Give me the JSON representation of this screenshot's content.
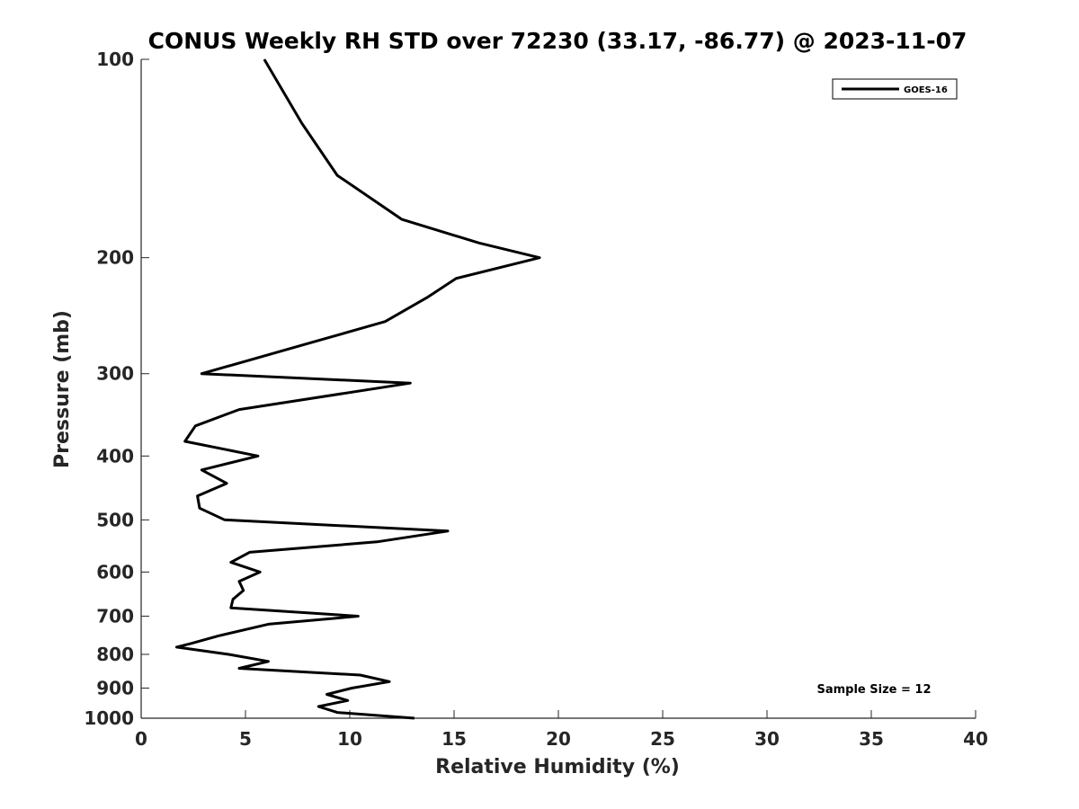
{
  "chart_data": {
    "type": "line",
    "title": "CONUS Weekly RH STD over 72230 (33.17, -86.77) @ 2023-11-07",
    "xlabel": "Relative Humidity (%)",
    "ylabel": "Pressure (mb)",
    "xlim": [
      0,
      40
    ],
    "ylim": [
      100,
      1000
    ],
    "yscale": "log",
    "y_reversed": true,
    "xticks": [
      0,
      5,
      10,
      15,
      20,
      25,
      30,
      35,
      40
    ],
    "xtick_labels": [
      "0",
      "5",
      "10",
      "15",
      "20",
      "25",
      "30",
      "35",
      "40"
    ],
    "yticks": [
      100,
      200,
      300,
      400,
      500,
      600,
      700,
      800,
      900,
      1000
    ],
    "ytick_labels": [
      "100",
      "200",
      "300",
      "400",
      "500",
      "600",
      "700",
      "800",
      "900",
      "1000"
    ],
    "grid": false,
    "legend": {
      "position": "top-right",
      "entries": [
        "GOES-16"
      ]
    },
    "annotation": "Sample Size = 12",
    "series": [
      {
        "name": "GOES-16",
        "color": "#000000",
        "points": [
          [
            5.9,
            100
          ],
          [
            7.7,
            125
          ],
          [
            9.4,
            150
          ],
          [
            12.5,
            175
          ],
          [
            16.2,
            190
          ],
          [
            19.1,
            200
          ],
          [
            15.1,
            215
          ],
          [
            13.7,
            230
          ],
          [
            11.7,
            250
          ],
          [
            2.9,
            300
          ],
          [
            12.9,
            310
          ],
          [
            4.7,
            340
          ],
          [
            2.6,
            360
          ],
          [
            2.1,
            380
          ],
          [
            5.6,
            400
          ],
          [
            2.9,
            420
          ],
          [
            4.1,
            440
          ],
          [
            2.7,
            460
          ],
          [
            2.8,
            480
          ],
          [
            4.0,
            500
          ],
          [
            14.7,
            520
          ],
          [
            11.3,
            540
          ],
          [
            5.2,
            560
          ],
          [
            4.3,
            580
          ],
          [
            5.7,
            600
          ],
          [
            4.7,
            620
          ],
          [
            4.9,
            640
          ],
          [
            4.4,
            660
          ],
          [
            4.3,
            680
          ],
          [
            10.4,
            700
          ],
          [
            6.1,
            720
          ],
          [
            3.7,
            750
          ],
          [
            2.4,
            770
          ],
          [
            1.7,
            780
          ],
          [
            4.2,
            800
          ],
          [
            6.1,
            820
          ],
          [
            4.7,
            840
          ],
          [
            10.5,
            860
          ],
          [
            11.9,
            880
          ],
          [
            10.1,
            900
          ],
          [
            8.9,
            920
          ],
          [
            9.9,
            940
          ],
          [
            8.5,
            960
          ],
          [
            9.4,
            980
          ],
          [
            13.1,
            1000
          ]
        ]
      }
    ]
  }
}
